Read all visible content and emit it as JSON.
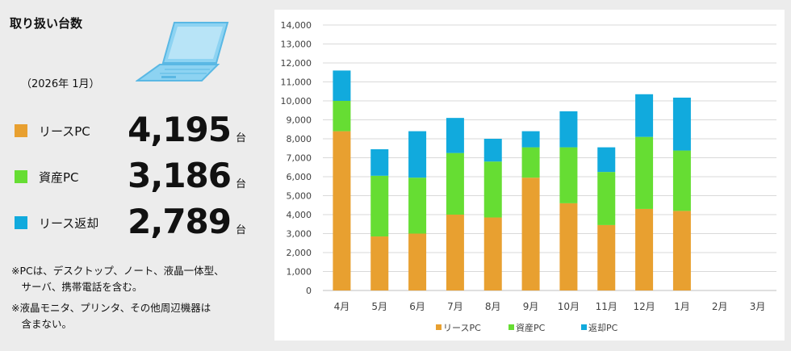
{
  "summary": {
    "title": "取り扱い台数",
    "date": "（2026年 1月）",
    "unit": "台",
    "items": [
      {
        "label": "リースPC",
        "value": "4,195",
        "color": "#e8a030"
      },
      {
        "label": "資産PC",
        "value": "3,186",
        "color": "#66dd33"
      },
      {
        "label": "リース返却",
        "value": "2,789",
        "color": "#11aadd"
      }
    ],
    "notes": [
      "※PCは、デスクトップ、ノート、液晶一体型、",
      "　サーバ、携帯電話を含む。",
      "※液晶モニタ、プリンタ、その他周辺機器は",
      "　含まない。"
    ]
  },
  "chart_data": {
    "type": "bar",
    "stacked": true,
    "categories": [
      "4月",
      "5月",
      "6月",
      "7月",
      "8月",
      "9月",
      "10月",
      "11月",
      "12月",
      "1月",
      "2月",
      "3月"
    ],
    "series": [
      {
        "name": "リースPC",
        "color": "#e8a030",
        "values": [
          8400,
          2850,
          3000,
          4000,
          3850,
          5950,
          4600,
          3450,
          4300,
          4195,
          null,
          null
        ]
      },
      {
        "name": "資産PC",
        "color": "#66dd33",
        "values": [
          1600,
          3200,
          2950,
          3250,
          2950,
          1600,
          2950,
          2800,
          3800,
          3186,
          null,
          null
        ]
      },
      {
        "name": "返却PC",
        "color": "#11aadd",
        "values": [
          1600,
          1400,
          2450,
          1850,
          1200,
          850,
          1900,
          1300,
          2250,
          2789,
          null,
          null
        ]
      }
    ],
    "ylim": [
      0,
      14000
    ],
    "yticks": [
      "0",
      "1,000",
      "2,000",
      "3,000",
      "4,000",
      "5,000",
      "6,000",
      "7,000",
      "8,000",
      "9,000",
      "10,000",
      "11,000",
      "12,000",
      "13,000",
      "14,000"
    ],
    "legend_position": "bottom",
    "grid": true
  }
}
